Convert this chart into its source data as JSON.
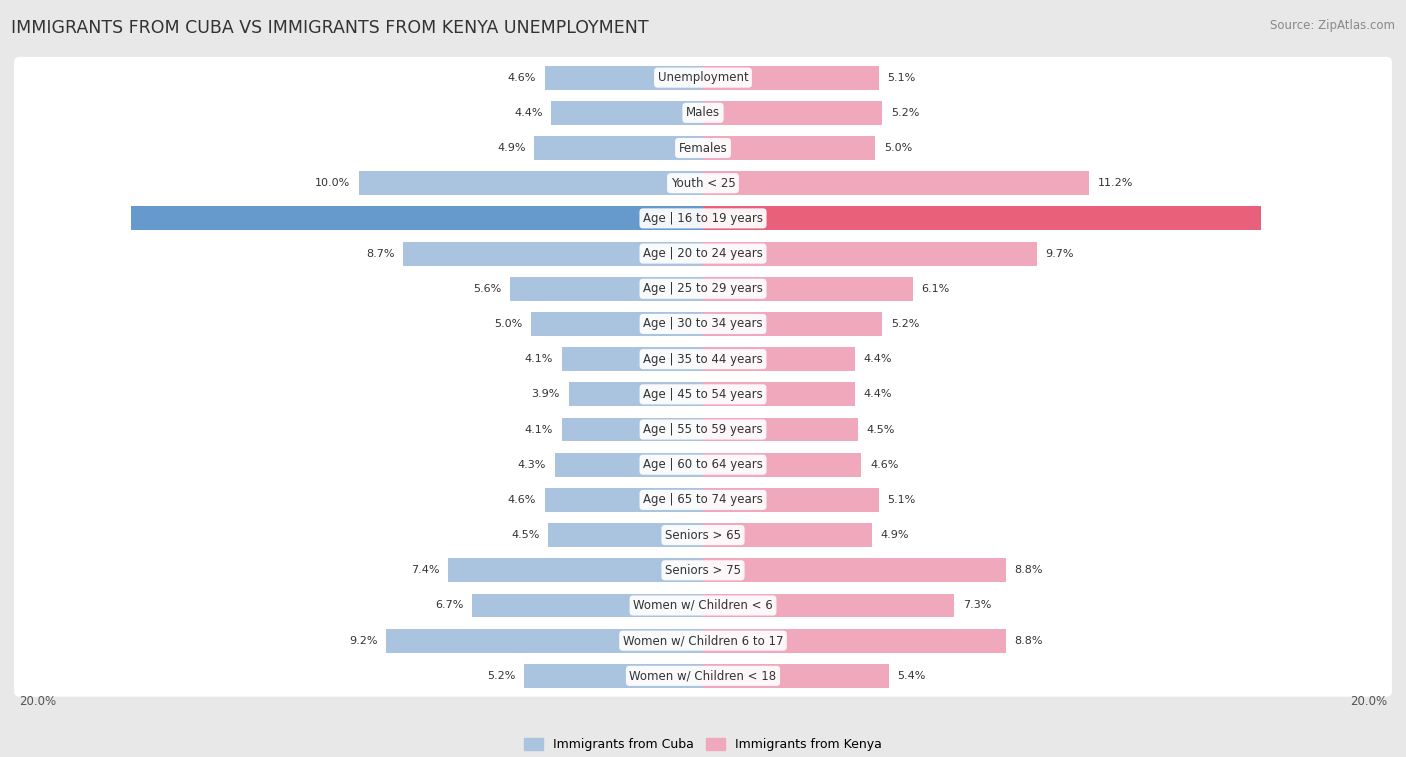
{
  "title": "IMMIGRANTS FROM CUBA VS IMMIGRANTS FROM KENYA UNEMPLOYMENT",
  "source": "Source: ZipAtlas.com",
  "categories": [
    "Unemployment",
    "Males",
    "Females",
    "Youth < 25",
    "Age | 16 to 19 years",
    "Age | 20 to 24 years",
    "Age | 25 to 29 years",
    "Age | 30 to 34 years",
    "Age | 35 to 44 years",
    "Age | 45 to 54 years",
    "Age | 55 to 59 years",
    "Age | 60 to 64 years",
    "Age | 65 to 74 years",
    "Seniors > 65",
    "Seniors > 75",
    "Women w/ Children < 6",
    "Women w/ Children 6 to 17",
    "Women w/ Children < 18"
  ],
  "cuba_values": [
    4.6,
    4.4,
    4.9,
    10.0,
    16.6,
    8.7,
    5.6,
    5.0,
    4.1,
    3.9,
    4.1,
    4.3,
    4.6,
    4.5,
    7.4,
    6.7,
    9.2,
    5.2
  ],
  "kenya_values": [
    5.1,
    5.2,
    5.0,
    11.2,
    16.2,
    9.7,
    6.1,
    5.2,
    4.4,
    4.4,
    4.5,
    4.6,
    5.1,
    4.9,
    8.8,
    7.3,
    8.8,
    5.4
  ],
  "cuba_color": "#aac4df",
  "kenya_color": "#f0a8bc",
  "cuba_highlight_color": "#6699cc",
  "kenya_highlight_color": "#e8607a",
  "row_bg_color": "#ffffff",
  "outer_bg_color": "#e8e8e8",
  "max_val": 20.0,
  "legend_cuba": "Immigrants from Cuba",
  "legend_kenya": "Immigrants from Kenya",
  "title_fontsize": 12.5,
  "source_fontsize": 8.5,
  "label_fontsize": 8.5,
  "value_fontsize": 8.0,
  "axis_label_fontsize": 8.5
}
